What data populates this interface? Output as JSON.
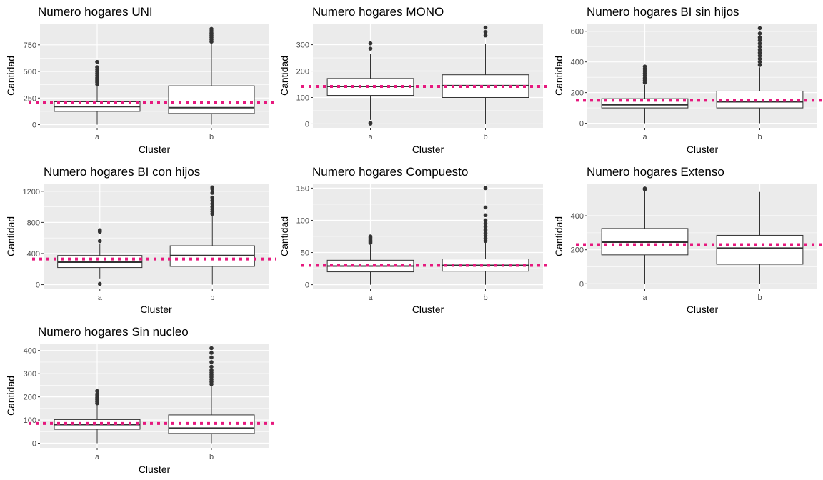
{
  "style": {
    "panel_background": "#ebebeb",
    "grid_color": "#ffffff",
    "box_fill": "#ffffff",
    "box_stroke": "#333333",
    "outlier_color": "#333333",
    "reference_line_color": "#e6197e",
    "tick_color": "#4d4d4d"
  },
  "chart_data": [
    {
      "type": "boxplot",
      "title": "Numero hogares UNI",
      "xlabel": "Cluster",
      "ylabel": "Cantidad",
      "categories": [
        "a",
        "b"
      ],
      "ylim": [
        -30,
        950
      ],
      "yticks": [
        0,
        250,
        500,
        750
      ],
      "grid": true,
      "reference_line": 210,
      "boxes": [
        {
          "category": "a",
          "min": 0,
          "q1": 125,
          "median": 170,
          "q3": 215,
          "max": 360,
          "outliers": [
            380,
            400,
            420,
            440,
            460,
            480,
            500,
            520,
            540,
            590
          ]
        },
        {
          "category": "b",
          "min": 0,
          "q1": 105,
          "median": 160,
          "q3": 365,
          "max": 760,
          "outliers": [
            780,
            800,
            820,
            840,
            860,
            880,
            900
          ]
        }
      ]
    },
    {
      "type": "boxplot",
      "title": "Numero hogares MONO",
      "xlabel": "Cluster",
      "ylabel": "Cantidad",
      "categories": [
        "a",
        "b"
      ],
      "ylim": [
        -15,
        380
      ],
      "yticks": [
        0,
        100,
        200,
        300
      ],
      "grid": true,
      "reference_line": 142,
      "boxes": [
        {
          "category": "a",
          "min": 15,
          "q1": 108,
          "median": 142,
          "q3": 172,
          "max": 265,
          "outliers": [
            1,
            4,
            285,
            305
          ]
        },
        {
          "category": "b",
          "min": 1,
          "q1": 100,
          "median": 145,
          "q3": 186,
          "max": 302,
          "outliers": [
            335,
            348,
            365
          ]
        }
      ]
    },
    {
      "type": "boxplot",
      "title": "Numero hogares BI sin hijos",
      "xlabel": "Cluster",
      "ylabel": "Cantidad",
      "categories": [
        "a",
        "b"
      ],
      "ylim": [
        -30,
        650
      ],
      "yticks": [
        0,
        200,
        400,
        600
      ],
      "grid": true,
      "reference_line": 150,
      "boxes": [
        {
          "category": "a",
          "min": 0,
          "q1": 100,
          "median": 120,
          "q3": 160,
          "max": 250,
          "outliers": [
            265,
            280,
            295,
            310,
            325,
            340,
            355,
            370
          ]
        },
        {
          "category": "b",
          "min": 0,
          "q1": 100,
          "median": 140,
          "q3": 210,
          "max": 365,
          "outliers": [
            380,
            400,
            420,
            440,
            460,
            480,
            500,
            520,
            540,
            560,
            585,
            620
          ]
        }
      ]
    },
    {
      "type": "boxplot",
      "title": "Numero hogares BI con hijos",
      "xlabel": "Cluster",
      "ylabel": "Cantidad",
      "categories": [
        "a",
        "b"
      ],
      "ylim": [
        -50,
        1290
      ],
      "yticks": [
        0,
        400,
        800,
        1200
      ],
      "grid": true,
      "reference_line": 330,
      "boxes": [
        {
          "category": "a",
          "min": 80,
          "q1": 220,
          "median": 290,
          "q3": 375,
          "max": 525,
          "outliers": [
            10,
            560,
            680,
            700
          ]
        },
        {
          "category": "b",
          "min": 0,
          "q1": 235,
          "median": 375,
          "q3": 500,
          "max": 890,
          "outliers": [
            910,
            940,
            970,
            1000,
            1040,
            1080,
            1120,
            1180,
            1230,
            1250
          ]
        }
      ]
    },
    {
      "type": "boxplot",
      "title": "Numero hogares Compuesto",
      "xlabel": "Cluster",
      "ylabel": "Cantidad",
      "categories": [
        "a",
        "b"
      ],
      "ylim": [
        -6,
        156
      ],
      "yticks": [
        0,
        50,
        100,
        150
      ],
      "grid": true,
      "reference_line": 30,
      "boxes": [
        {
          "category": "a",
          "min": 0,
          "q1": 20,
          "median": 29,
          "q3": 38,
          "max": 62,
          "outliers": [
            65,
            67,
            69,
            71,
            73,
            75
          ]
        },
        {
          "category": "b",
          "min": 0,
          "q1": 21,
          "median": 30,
          "q3": 40,
          "max": 65,
          "outliers": [
            68,
            72,
            76,
            80,
            85,
            90,
            95,
            100,
            108,
            120,
            150
          ]
        }
      ]
    },
    {
      "type": "boxplot",
      "title": "Numero hogares Extenso",
      "xlabel": "Cluster",
      "ylabel": "Cantidad",
      "categories": [
        "a",
        "b"
      ],
      "ylim": [
        -28,
        585
      ],
      "yticks": [
        0,
        200,
        400
      ],
      "grid": true,
      "reference_line": 230,
      "boxes": [
        {
          "category": "a",
          "min": 0,
          "q1": 170,
          "median": 245,
          "q3": 325,
          "max": 545,
          "outliers": [
            555,
            560
          ]
        },
        {
          "category": "b",
          "min": 0,
          "q1": 115,
          "median": 210,
          "q3": 285,
          "max": 540,
          "outliers": []
        }
      ]
    },
    {
      "type": "boxplot",
      "title": "Numero hogares Sin nucleo",
      "xlabel": "Cluster",
      "ylabel": "Cantidad",
      "categories": [
        "a",
        "b"
      ],
      "ylim": [
        -20,
        430
      ],
      "yticks": [
        0,
        100,
        200,
        300,
        400
      ],
      "grid": true,
      "reference_line": 85,
      "boxes": [
        {
          "category": "a",
          "min": 0,
          "q1": 60,
          "median": 80,
          "q3": 102,
          "max": 165,
          "outliers": [
            172,
            180,
            188,
            196,
            204,
            212,
            225
          ]
        },
        {
          "category": "b",
          "min": 0,
          "q1": 42,
          "median": 65,
          "q3": 122,
          "max": 245,
          "outliers": [
            255,
            265,
            275,
            285,
            295,
            305,
            315,
            330,
            350,
            370,
            390,
            410
          ]
        }
      ]
    }
  ]
}
